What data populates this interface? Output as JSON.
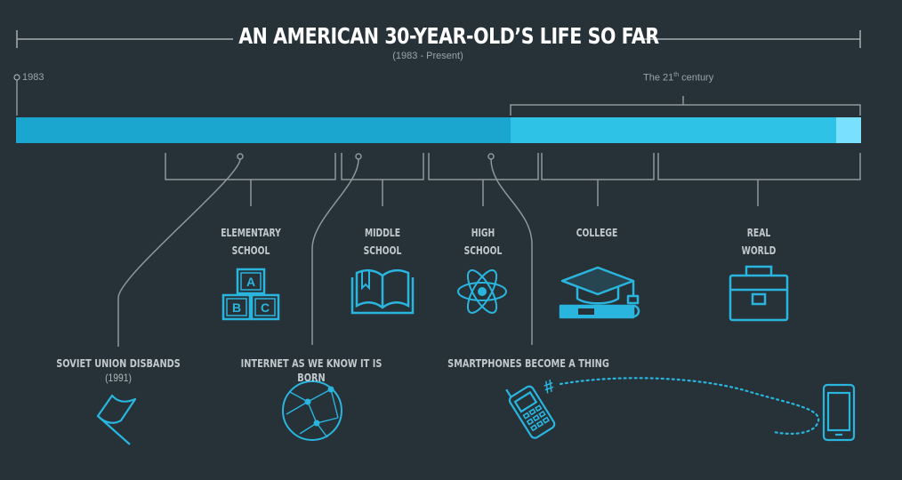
{
  "title": "AN AMERICAN 30-YEAR-OLD’S LIFE SO FAR",
  "subtitle": "(1983 - Present)",
  "start_label": "1983",
  "century_label": {
    "main": "The 21",
    "sup": "th",
    "rest": " century"
  },
  "stages": [
    {
      "line1": "ELEMENTARY",
      "line2": "SCHOOL",
      "icon": "abc-blocks-icon"
    },
    {
      "line1": "MIDDLE",
      "line2": "SCHOOL",
      "icon": "open-book-icon"
    },
    {
      "line1": "HIGH",
      "line2": "SCHOOL",
      "icon": "atom-icon"
    },
    {
      "line1": "COLLEGE",
      "line2": "",
      "icon": "graduation-cap-icon"
    },
    {
      "line1": "REAL",
      "line2": "WORLD",
      "icon": "briefcase-icon"
    }
  ],
  "block_letters": [
    "A",
    "B",
    "C"
  ],
  "events": [
    {
      "label": "SOVIET UNION DISBANDS",
      "sub": "(1991)",
      "icon": "flag-icon"
    },
    {
      "label": "INTERNET AS WE KNOW IT IS BORN",
      "sub": "",
      "icon": "globe-network-icon"
    },
    {
      "label": "SMARTPHONES BECOME A THING",
      "sub": "",
      "icon": "cellphone-to-smartphone-icon"
    }
  ],
  "hashtag": "#",
  "colors": {
    "background": "#263238",
    "bar_20th": "#1aa6cf",
    "bar_21st": "#2ec3e6",
    "bar_present": "#7ae0ff",
    "line": "#8e979c",
    "icon": "#2ab5df",
    "title": "#ffffff"
  }
}
